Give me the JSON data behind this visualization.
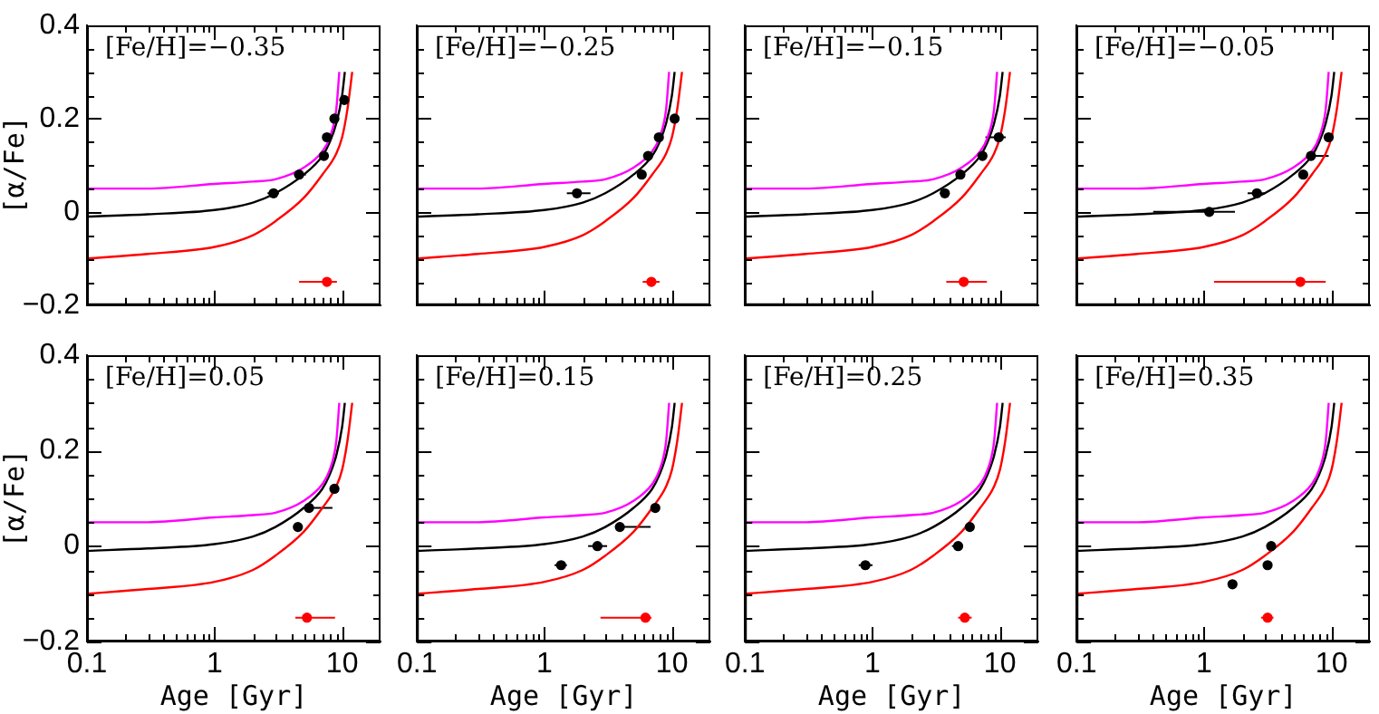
{
  "chart_data": [
    {
      "type": "scatter",
      "xlabel": null,
      "ylabel": "[α/Fe]",
      "tick_labels": "y",
      "log": "x",
      "xlim": [
        0.1,
        20
      ],
      "ylim": [
        -0.2,
        0.4
      ],
      "annotations": [
        "[Fe/H]=−0.35"
      ],
      "xticks": [
        0.1,
        {
          "value": 0.2,
          "label": null
        },
        {
          "value": 0.3,
          "label": null
        },
        {
          "value": 0.4,
          "label": null
        },
        {
          "value": 0.5,
          "label": null
        },
        {
          "value": 0.6,
          "label": null
        },
        {
          "value": 0.7,
          "label": null
        },
        {
          "value": 0.8,
          "label": null
        },
        {
          "value": 0.9,
          "label": null
        },
        1,
        {
          "value": 2,
          "label": null
        },
        {
          "value": 3,
          "label": null
        },
        {
          "value": 4,
          "label": null
        },
        {
          "value": 5,
          "label": null
        },
        {
          "value": 6,
          "label": null
        },
        {
          "value": 7,
          "label": null
        },
        {
          "value": 8,
          "label": null
        },
        {
          "value": 9,
          "label": null
        },
        10
      ],
      "yticks": [
        -0.2,
        {
          "value": -0.15,
          "label": null
        },
        {
          "value": -0.1,
          "label": null
        },
        {
          "value": -0.05,
          "label": null
        },
        0,
        {
          "value": 0.05,
          "label": null
        },
        {
          "value": 0.1,
          "label": null
        },
        {
          "value": 0.15,
          "label": null
        },
        0.2,
        {
          "value": 0.25,
          "label": null
        },
        {
          "value": 0.3,
          "label": null
        },
        {
          "value": 0.35,
          "label": null
        },
        0.4
      ],
      "series": [
        {
          "type": "line",
          "color": "#ff00ff",
          "marker": "none",
          "x": [
            0.1,
            0.3,
            1,
            2,
            3,
            5,
            7,
            8,
            9,
            9.5
          ],
          "values": [
            0.05,
            0.05,
            0.06,
            0.065,
            0.07,
            0.095,
            0.13,
            0.16,
            0.22,
            0.3
          ]
        },
        {
          "type": "line",
          "color": "#000000",
          "marker": "none",
          "x": [
            0.1,
            0.3,
            1,
            2,
            3,
            5,
            7,
            8,
            9,
            10,
            10.5
          ],
          "values": [
            -0.01,
            -0.005,
            0.004,
            0.02,
            0.04,
            0.08,
            0.12,
            0.15,
            0.19,
            0.25,
            0.3
          ]
        },
        {
          "type": "line",
          "color": "#ff0000",
          "marker": "none",
          "x": [
            0.1,
            0.3,
            1,
            2,
            3,
            5,
            7,
            9,
            10,
            11,
            12
          ],
          "values": [
            -0.1,
            -0.09,
            -0.075,
            -0.05,
            -0.02,
            0.03,
            0.08,
            0.125,
            0.16,
            0.22,
            0.3
          ]
        },
        {
          "type": "scatter",
          "color": "#000000",
          "marker": "circle",
          "x": [
            2.9,
            4.6,
            7.2,
            7.6,
            8.7,
            10.4
          ],
          "values": [
            0.04,
            0.08,
            0.12,
            0.16,
            0.2,
            0.24
          ],
          "xerrors": [
            [
              2.6,
              3.2
            ],
            [
              4.2,
              5.2
            ],
            null,
            null,
            null,
            null
          ]
        },
        {
          "type": "scatter",
          "color": "#ff0000",
          "marker": "circle",
          "x": [
            7.6
          ],
          "values": [
            -0.15
          ],
          "xerrors": [
            [
              4.6,
              9.1
            ]
          ]
        }
      ]
    },
    {
      "type": "scatter",
      "tick_labels": false,
      "log": "x",
      "xlim": [
        0.1,
        20
      ],
      "ylim": [
        -0.2,
        0.4
      ],
      "annotations": [
        "[Fe/H]=−0.25"
      ],
      "xticks": [
        0.1,
        {
          "value": 0.2,
          "label": null
        },
        {
          "value": 0.3,
          "label": null
        },
        {
          "value": 0.4,
          "label": null
        },
        {
          "value": 0.5,
          "label": null
        },
        {
          "value": 0.6,
          "label": null
        },
        {
          "value": 0.7,
          "label": null
        },
        {
          "value": 0.8,
          "label": null
        },
        {
          "value": 0.9,
          "label": null
        },
        1,
        {
          "value": 2,
          "label": null
        },
        {
          "value": 3,
          "label": null
        },
        {
          "value": 4,
          "label": null
        },
        {
          "value": 5,
          "label": null
        },
        {
          "value": 6,
          "label": null
        },
        {
          "value": 7,
          "label": null
        },
        {
          "value": 8,
          "label": null
        },
        {
          "value": 9,
          "label": null
        },
        10
      ],
      "yticks": [
        -0.2,
        {
          "value": -0.15,
          "label": null
        },
        {
          "value": -0.1,
          "label": null
        },
        {
          "value": -0.05,
          "label": null
        },
        0,
        {
          "value": 0.05,
          "label": null
        },
        {
          "value": 0.1,
          "label": null
        },
        {
          "value": 0.15,
          "label": null
        },
        0.2,
        {
          "value": 0.25,
          "label": null
        },
        {
          "value": 0.3,
          "label": null
        },
        {
          "value": 0.35,
          "label": null
        },
        0.4
      ],
      "series": [
        {
          "type": "line",
          "color": "#ff00ff",
          "marker": "none",
          "x": [
            0.1,
            0.3,
            1,
            2,
            3,
            5,
            7,
            8,
            9,
            9.5
          ],
          "values": [
            0.05,
            0.05,
            0.06,
            0.065,
            0.07,
            0.095,
            0.13,
            0.16,
            0.22,
            0.3
          ]
        },
        {
          "type": "line",
          "color": "#000000",
          "marker": "none",
          "x": [
            0.1,
            0.3,
            1,
            2,
            3,
            5,
            7,
            8,
            9,
            10,
            10.5
          ],
          "values": [
            -0.01,
            -0.005,
            0.004,
            0.02,
            0.04,
            0.08,
            0.12,
            0.15,
            0.19,
            0.25,
            0.3
          ]
        },
        {
          "type": "line",
          "color": "#ff0000",
          "marker": "none",
          "x": [
            0.1,
            0.3,
            1,
            2,
            3,
            5,
            7,
            9,
            10,
            11,
            12
          ],
          "values": [
            -0.1,
            -0.09,
            -0.075,
            -0.05,
            -0.02,
            0.03,
            0.08,
            0.125,
            0.16,
            0.22,
            0.3
          ]
        },
        {
          "type": "scatter",
          "color": "#000000",
          "marker": "circle",
          "x": [
            1.8,
            5.8,
            6.5,
            7.9,
            10.5
          ],
          "values": [
            0.04,
            0.08,
            0.12,
            0.16,
            0.2
          ],
          "xerrors": [
            [
              1.5,
              2.3
            ],
            null,
            null,
            null,
            null
          ]
        },
        {
          "type": "scatter",
          "color": "#ff0000",
          "marker": "circle",
          "x": [
            6.9
          ],
          "values": [
            -0.15
          ],
          "xerrors": [
            [
              5.9,
              8.0
            ]
          ]
        }
      ]
    },
    {
      "type": "scatter",
      "tick_labels": false,
      "log": "x",
      "xlim": [
        0.1,
        20
      ],
      "ylim": [
        -0.2,
        0.4
      ],
      "annotations": [
        "[Fe/H]=−0.15"
      ],
      "xticks": [
        0.1,
        {
          "value": 0.2,
          "label": null
        },
        {
          "value": 0.3,
          "label": null
        },
        {
          "value": 0.4,
          "label": null
        },
        {
          "value": 0.5,
          "label": null
        },
        {
          "value": 0.6,
          "label": null
        },
        {
          "value": 0.7,
          "label": null
        },
        {
          "value": 0.8,
          "label": null
        },
        {
          "value": 0.9,
          "label": null
        },
        1,
        {
          "value": 2,
          "label": null
        },
        {
          "value": 3,
          "label": null
        },
        {
          "value": 4,
          "label": null
        },
        {
          "value": 5,
          "label": null
        },
        {
          "value": 6,
          "label": null
        },
        {
          "value": 7,
          "label": null
        },
        {
          "value": 8,
          "label": null
        },
        {
          "value": 9,
          "label": null
        },
        10
      ],
      "yticks": [
        -0.2,
        {
          "value": -0.15,
          "label": null
        },
        {
          "value": -0.1,
          "label": null
        },
        {
          "value": -0.05,
          "label": null
        },
        0,
        {
          "value": 0.05,
          "label": null
        },
        {
          "value": 0.1,
          "label": null
        },
        {
          "value": 0.15,
          "label": null
        },
        0.2,
        {
          "value": 0.25,
          "label": null
        },
        {
          "value": 0.3,
          "label": null
        },
        {
          "value": 0.35,
          "label": null
        },
        0.4
      ],
      "series": [
        {
          "type": "line",
          "color": "#ff00ff",
          "marker": "none",
          "x": [
            0.1,
            0.3,
            1,
            2,
            3,
            5,
            7,
            8,
            9,
            9.5
          ],
          "values": [
            0.05,
            0.05,
            0.06,
            0.065,
            0.07,
            0.095,
            0.13,
            0.16,
            0.22,
            0.3
          ]
        },
        {
          "type": "line",
          "color": "#000000",
          "marker": "none",
          "x": [
            0.1,
            0.3,
            1,
            2,
            3,
            5,
            7,
            8,
            9,
            10,
            10.5
          ],
          "values": [
            -0.01,
            -0.005,
            0.004,
            0.02,
            0.04,
            0.08,
            0.12,
            0.15,
            0.19,
            0.25,
            0.3
          ]
        },
        {
          "type": "line",
          "color": "#ff0000",
          "marker": "none",
          "x": [
            0.1,
            0.3,
            1,
            2,
            3,
            5,
            7,
            9,
            10,
            11,
            12
          ],
          "values": [
            -0.1,
            -0.09,
            -0.075,
            -0.05,
            -0.02,
            0.03,
            0.08,
            0.125,
            0.16,
            0.22,
            0.3
          ]
        },
        {
          "type": "scatter",
          "color": "#000000",
          "marker": "circle",
          "x": [
            3.7,
            4.9,
            7.3,
            9.8
          ],
          "values": [
            0.04,
            0.08,
            0.12,
            0.16
          ],
          "xerrors": [
            [
              3.4,
              4.0
            ],
            null,
            null,
            [
              7.7,
              11.1
            ]
          ]
        },
        {
          "type": "scatter",
          "color": "#ff0000",
          "marker": "circle",
          "x": [
            5.2
          ],
          "values": [
            -0.15
          ],
          "xerrors": [
            [
              3.8,
              7.9
            ]
          ]
        }
      ]
    },
    {
      "type": "scatter",
      "tick_labels": false,
      "log": "x",
      "xlim": [
        0.1,
        20
      ],
      "ylim": [
        -0.2,
        0.4
      ],
      "annotations": [
        "[Fe/H]=−0.05"
      ],
      "xticks": [
        0.1,
        {
          "value": 0.2,
          "label": null
        },
        {
          "value": 0.3,
          "label": null
        },
        {
          "value": 0.4,
          "label": null
        },
        {
          "value": 0.5,
          "label": null
        },
        {
          "value": 0.6,
          "label": null
        },
        {
          "value": 0.7,
          "label": null
        },
        {
          "value": 0.8,
          "label": null
        },
        {
          "value": 0.9,
          "label": null
        },
        1,
        {
          "value": 2,
          "label": null
        },
        {
          "value": 3,
          "label": null
        },
        {
          "value": 4,
          "label": null
        },
        {
          "value": 5,
          "label": null
        },
        {
          "value": 6,
          "label": null
        },
        {
          "value": 7,
          "label": null
        },
        {
          "value": 8,
          "label": null
        },
        {
          "value": 9,
          "label": null
        },
        10
      ],
      "yticks": [
        -0.2,
        {
          "value": -0.15,
          "label": null
        },
        {
          "value": -0.1,
          "label": null
        },
        {
          "value": -0.05,
          "label": null
        },
        0,
        {
          "value": 0.05,
          "label": null
        },
        {
          "value": 0.1,
          "label": null
        },
        {
          "value": 0.15,
          "label": null
        },
        0.2,
        {
          "value": 0.25,
          "label": null
        },
        {
          "value": 0.3,
          "label": null
        },
        {
          "value": 0.35,
          "label": null
        },
        0.4
      ],
      "series": [
        {
          "type": "line",
          "color": "#ff00ff",
          "marker": "none",
          "x": [
            0.1,
            0.3,
            1,
            2,
            3,
            5,
            7,
            8,
            9,
            9.5
          ],
          "values": [
            0.05,
            0.05,
            0.06,
            0.065,
            0.07,
            0.095,
            0.13,
            0.16,
            0.22,
            0.3
          ]
        },
        {
          "type": "line",
          "color": "#000000",
          "marker": "none",
          "x": [
            0.1,
            0.3,
            1,
            2,
            3,
            5,
            7,
            8,
            9,
            10,
            10.5
          ],
          "values": [
            -0.01,
            -0.005,
            0.004,
            0.02,
            0.04,
            0.08,
            0.12,
            0.15,
            0.19,
            0.25,
            0.3
          ]
        },
        {
          "type": "line",
          "color": "#ff0000",
          "marker": "none",
          "x": [
            0.1,
            0.3,
            1,
            2,
            3,
            5,
            7,
            9,
            10,
            11,
            12
          ],
          "values": [
            -0.1,
            -0.09,
            -0.075,
            -0.05,
            -0.02,
            0.03,
            0.08,
            0.125,
            0.16,
            0.22,
            0.3
          ]
        },
        {
          "type": "scatter",
          "color": "#000000",
          "marker": "circle",
          "x": [
            1.1,
            2.6,
            6.0,
            6.9,
            9.5
          ],
          "values": [
            0,
            0.04,
            0.08,
            0.12,
            0.16
          ],
          "xerrors": [
            [
              0.4,
              1.75
            ],
            [
              2.2,
              3.0
            ],
            null,
            [
              6.9,
              9.5
            ],
            null
          ]
        },
        {
          "type": "scatter",
          "color": "#ff0000",
          "marker": "circle",
          "x": [
            5.7
          ],
          "values": [
            -0.15
          ],
          "xerrors": [
            [
              1.2,
              9.0
            ]
          ]
        }
      ]
    },
    {
      "type": "scatter",
      "xlabel": "Age [Gyr]",
      "ylabel": "[α/Fe]",
      "log": "x",
      "xlim": [
        0.1,
        20
      ],
      "ylim": [
        -0.2,
        0.4
      ],
      "annotations": [
        "[Fe/H]=0.05"
      ],
      "xticks": [
        0.1,
        {
          "value": 0.2,
          "label": null
        },
        {
          "value": 0.3,
          "label": null
        },
        {
          "value": 0.4,
          "label": null
        },
        {
          "value": 0.5,
          "label": null
        },
        {
          "value": 0.6,
          "label": null
        },
        {
          "value": 0.7,
          "label": null
        },
        {
          "value": 0.8,
          "label": null
        },
        {
          "value": 0.9,
          "label": null
        },
        1,
        {
          "value": 2,
          "label": null
        },
        {
          "value": 3,
          "label": null
        },
        {
          "value": 4,
          "label": null
        },
        {
          "value": 5,
          "label": null
        },
        {
          "value": 6,
          "label": null
        },
        {
          "value": 7,
          "label": null
        },
        {
          "value": 8,
          "label": null
        },
        {
          "value": 9,
          "label": null
        },
        10
      ],
      "yticks": [
        -0.2,
        {
          "value": -0.15,
          "label": null
        },
        {
          "value": -0.1,
          "label": null
        },
        {
          "value": -0.05,
          "label": null
        },
        0,
        {
          "value": 0.05,
          "label": null
        },
        {
          "value": 0.1,
          "label": null
        },
        {
          "value": 0.15,
          "label": null
        },
        0.2,
        {
          "value": 0.25,
          "label": null
        },
        {
          "value": 0.3,
          "label": null
        },
        {
          "value": 0.35,
          "label": null
        },
        0.4
      ],
      "series": [
        {
          "type": "line",
          "color": "#ff00ff",
          "marker": "none",
          "x": [
            0.1,
            0.3,
            1,
            2,
            3,
            5,
            7,
            8,
            9,
            9.5
          ],
          "values": [
            0.05,
            0.05,
            0.06,
            0.065,
            0.07,
            0.095,
            0.13,
            0.16,
            0.22,
            0.3
          ]
        },
        {
          "type": "line",
          "color": "#000000",
          "marker": "none",
          "x": [
            0.1,
            0.3,
            1,
            2,
            3,
            5,
            7,
            8,
            9,
            10,
            10.5
          ],
          "values": [
            -0.01,
            -0.005,
            0.004,
            0.02,
            0.04,
            0.08,
            0.12,
            0.15,
            0.19,
            0.25,
            0.3
          ]
        },
        {
          "type": "line",
          "color": "#ff0000",
          "marker": "none",
          "x": [
            0.1,
            0.3,
            1,
            2,
            3,
            5,
            7,
            9,
            10,
            11,
            12
          ],
          "values": [
            -0.1,
            -0.09,
            -0.075,
            -0.05,
            -0.02,
            0.03,
            0.08,
            0.125,
            0.16,
            0.22,
            0.3
          ]
        },
        {
          "type": "scatter",
          "color": "#000000",
          "marker": "circle",
          "x": [
            4.5,
            5.5,
            8.7
          ],
          "values": [
            0.04,
            0.08,
            0.12
          ],
          "xerrors": [
            null,
            [
              5.5,
              8.4
            ],
            null
          ]
        },
        {
          "type": "scatter",
          "color": "#ff0000",
          "marker": "circle",
          "x": [
            5.3
          ],
          "values": [
            -0.15
          ],
          "xerrors": [
            [
              4.3,
              8.8
            ]
          ]
        }
      ]
    },
    {
      "type": "scatter",
      "xlabel": "Age [Gyr]",
      "tick_labels": "x",
      "log": "x",
      "xlim": [
        0.1,
        20
      ],
      "ylim": [
        -0.2,
        0.4
      ],
      "annotations": [
        "[Fe/H]=0.15"
      ],
      "xticks": [
        0.1,
        {
          "value": 0.2,
          "label": null
        },
        {
          "value": 0.3,
          "label": null
        },
        {
          "value": 0.4,
          "label": null
        },
        {
          "value": 0.5,
          "label": null
        },
        {
          "value": 0.6,
          "label": null
        },
        {
          "value": 0.7,
          "label": null
        },
        {
          "value": 0.8,
          "label": null
        },
        {
          "value": 0.9,
          "label": null
        },
        1,
        {
          "value": 2,
          "label": null
        },
        {
          "value": 3,
          "label": null
        },
        {
          "value": 4,
          "label": null
        },
        {
          "value": 5,
          "label": null
        },
        {
          "value": 6,
          "label": null
        },
        {
          "value": 7,
          "label": null
        },
        {
          "value": 8,
          "label": null
        },
        {
          "value": 9,
          "label": null
        },
        10
      ],
      "yticks": [
        -0.2,
        {
          "value": -0.15,
          "label": null
        },
        {
          "value": -0.1,
          "label": null
        },
        {
          "value": -0.05,
          "label": null
        },
        0,
        {
          "value": 0.05,
          "label": null
        },
        {
          "value": 0.1,
          "label": null
        },
        {
          "value": 0.15,
          "label": null
        },
        0.2,
        {
          "value": 0.25,
          "label": null
        },
        {
          "value": 0.3,
          "label": null
        },
        {
          "value": 0.35,
          "label": null
        },
        0.4
      ],
      "series": [
        {
          "type": "line",
          "color": "#ff00ff",
          "marker": "none",
          "x": [
            0.1,
            0.3,
            1,
            2,
            3,
            5,
            7,
            8,
            9,
            9.5
          ],
          "values": [
            0.05,
            0.05,
            0.06,
            0.065,
            0.07,
            0.095,
            0.13,
            0.16,
            0.22,
            0.3
          ]
        },
        {
          "type": "line",
          "color": "#000000",
          "marker": "none",
          "x": [
            0.1,
            0.3,
            1,
            2,
            3,
            5,
            7,
            8,
            9,
            10,
            10.5
          ],
          "values": [
            -0.01,
            -0.005,
            0.004,
            0.02,
            0.04,
            0.08,
            0.12,
            0.15,
            0.19,
            0.25,
            0.3
          ]
        },
        {
          "type": "line",
          "color": "#ff0000",
          "marker": "none",
          "x": [
            0.1,
            0.3,
            1,
            2,
            3,
            5,
            7,
            9,
            10,
            11,
            12
          ],
          "values": [
            -0.1,
            -0.09,
            -0.075,
            -0.05,
            -0.02,
            0.03,
            0.08,
            0.125,
            0.16,
            0.22,
            0.3
          ]
        },
        {
          "type": "scatter",
          "color": "#000000",
          "marker": "circle",
          "x": [
            1.35,
            2.6,
            3.9,
            7.4
          ],
          "values": [
            -0.04,
            0,
            0.04,
            0.08
          ],
          "xerrors": [
            [
              1.2,
              1.5
            ],
            [
              2.2,
              3.1
            ],
            [
              3.9,
              6.8
            ],
            null
          ]
        },
        {
          "type": "scatter",
          "color": "#ff0000",
          "marker": "circle",
          "x": [
            6.2
          ],
          "values": [
            -0.15
          ],
          "xerrors": [
            [
              2.75,
              6.9
            ]
          ]
        }
      ]
    },
    {
      "type": "scatter",
      "xlabel": "Age [Gyr]",
      "tick_labels": "x",
      "log": "x",
      "xlim": [
        0.1,
        20
      ],
      "ylim": [
        -0.2,
        0.4
      ],
      "annotations": [
        "[Fe/H]=0.25"
      ],
      "xticks": [
        0.1,
        {
          "value": 0.2,
          "label": null
        },
        {
          "value": 0.3,
          "label": null
        },
        {
          "value": 0.4,
          "label": null
        },
        {
          "value": 0.5,
          "label": null
        },
        {
          "value": 0.6,
          "label": null
        },
        {
          "value": 0.7,
          "label": null
        },
        {
          "value": 0.8,
          "label": null
        },
        {
          "value": 0.9,
          "label": null
        },
        1,
        {
          "value": 2,
          "label": null
        },
        {
          "value": 3,
          "label": null
        },
        {
          "value": 4,
          "label": null
        },
        {
          "value": 5,
          "label": null
        },
        {
          "value": 6,
          "label": null
        },
        {
          "value": 7,
          "label": null
        },
        {
          "value": 8,
          "label": null
        },
        {
          "value": 9,
          "label": null
        },
        10
      ],
      "yticks": [
        -0.2,
        {
          "value": -0.15,
          "label": null
        },
        {
          "value": -0.1,
          "label": null
        },
        {
          "value": -0.05,
          "label": null
        },
        0,
        {
          "value": 0.05,
          "label": null
        },
        {
          "value": 0.1,
          "label": null
        },
        {
          "value": 0.15,
          "label": null
        },
        0.2,
        {
          "value": 0.25,
          "label": null
        },
        {
          "value": 0.3,
          "label": null
        },
        {
          "value": 0.35,
          "label": null
        },
        0.4
      ],
      "series": [
        {
          "type": "line",
          "color": "#ff00ff",
          "marker": "none",
          "x": [
            0.1,
            0.3,
            1,
            2,
            3,
            5,
            7,
            8,
            9,
            9.5
          ],
          "values": [
            0.05,
            0.05,
            0.06,
            0.065,
            0.07,
            0.095,
            0.13,
            0.16,
            0.22,
            0.3
          ]
        },
        {
          "type": "line",
          "color": "#000000",
          "marker": "none",
          "x": [
            0.1,
            0.3,
            1,
            2,
            3,
            5,
            7,
            8,
            9,
            10,
            10.5
          ],
          "values": [
            -0.01,
            -0.005,
            0.004,
            0.02,
            0.04,
            0.08,
            0.12,
            0.15,
            0.19,
            0.25,
            0.3
          ]
        },
        {
          "type": "line",
          "color": "#ff0000",
          "marker": "none",
          "x": [
            0.1,
            0.3,
            1,
            2,
            3,
            5,
            7,
            9,
            10,
            11,
            12
          ],
          "values": [
            -0.1,
            -0.09,
            -0.075,
            -0.05,
            -0.02,
            0.03,
            0.08,
            0.125,
            0.16,
            0.22,
            0.3
          ]
        },
        {
          "type": "scatter",
          "color": "#000000",
          "marker": "circle",
          "x": [
            0.88,
            4.7,
            5.8
          ],
          "values": [
            -0.04,
            0,
            0.04
          ],
          "xerrors": [
            [
              0.78,
              1.0
            ],
            [
              4.2,
              5.1
            ],
            null
          ]
        },
        {
          "type": "scatter",
          "color": "#ff0000",
          "marker": "circle",
          "x": [
            5.3
          ],
          "values": [
            -0.15
          ],
          "xerrors": [
            [
              4.7,
              6.0
            ]
          ]
        }
      ]
    },
    {
      "type": "scatter",
      "xlabel": "Age [Gyr]",
      "tick_labels": "x",
      "log": "x",
      "xlim": [
        0.1,
        20
      ],
      "ylim": [
        -0.2,
        0.4
      ],
      "annotations": [
        "[Fe/H]=0.35"
      ],
      "xticks": [
        0.1,
        {
          "value": 0.2,
          "label": null
        },
        {
          "value": 0.3,
          "label": null
        },
        {
          "value": 0.4,
          "label": null
        },
        {
          "value": 0.5,
          "label": null
        },
        {
          "value": 0.6,
          "label": null
        },
        {
          "value": 0.7,
          "label": null
        },
        {
          "value": 0.8,
          "label": null
        },
        {
          "value": 0.9,
          "label": null
        },
        1,
        {
          "value": 2,
          "label": null
        },
        {
          "value": 3,
          "label": null
        },
        {
          "value": 4,
          "label": null
        },
        {
          "value": 5,
          "label": null
        },
        {
          "value": 6,
          "label": null
        },
        {
          "value": 7,
          "label": null
        },
        {
          "value": 8,
          "label": null
        },
        {
          "value": 9,
          "label": null
        },
        10
      ],
      "yticks": [
        -0.2,
        {
          "value": -0.15,
          "label": null
        },
        {
          "value": -0.1,
          "label": null
        },
        {
          "value": -0.05,
          "label": null
        },
        0,
        {
          "value": 0.05,
          "label": null
        },
        {
          "value": 0.1,
          "label": null
        },
        {
          "value": 0.15,
          "label": null
        },
        0.2,
        {
          "value": 0.25,
          "label": null
        },
        {
          "value": 0.3,
          "label": null
        },
        {
          "value": 0.35,
          "label": null
        },
        0.4
      ],
      "series": [
        {
          "type": "line",
          "color": "#ff00ff",
          "marker": "none",
          "x": [
            0.1,
            0.3,
            1,
            2,
            3,
            5,
            7,
            8,
            9,
            9.5
          ],
          "values": [
            0.05,
            0.05,
            0.06,
            0.065,
            0.07,
            0.095,
            0.13,
            0.16,
            0.22,
            0.3
          ]
        },
        {
          "type": "line",
          "color": "#000000",
          "marker": "none",
          "x": [
            0.1,
            0.3,
            1,
            2,
            3,
            5,
            7,
            8,
            9,
            10,
            10.5
          ],
          "values": [
            -0.01,
            -0.005,
            0.004,
            0.02,
            0.04,
            0.08,
            0.12,
            0.15,
            0.19,
            0.25,
            0.3
          ]
        },
        {
          "type": "line",
          "color": "#ff0000",
          "marker": "none",
          "x": [
            0.1,
            0.3,
            1,
            2,
            3,
            5,
            7,
            9,
            10,
            11,
            12
          ],
          "values": [
            -0.1,
            -0.09,
            -0.075,
            -0.05,
            -0.02,
            0.03,
            0.08,
            0.125,
            0.16,
            0.22,
            0.3
          ]
        },
        {
          "type": "scatter",
          "color": "#000000",
          "marker": "circle",
          "x": [
            1.67,
            3.15,
            3.36
          ],
          "values": [
            -0.08,
            -0.04,
            0
          ],
          "xerrors": [
            null,
            null,
            null
          ]
        },
        {
          "type": "scatter",
          "color": "#ff0000",
          "marker": "circle",
          "x": [
            3.15
          ],
          "values": [
            -0.15
          ],
          "xerrors": [
            [
              2.8,
              3.5
            ]
          ]
        }
      ]
    }
  ]
}
